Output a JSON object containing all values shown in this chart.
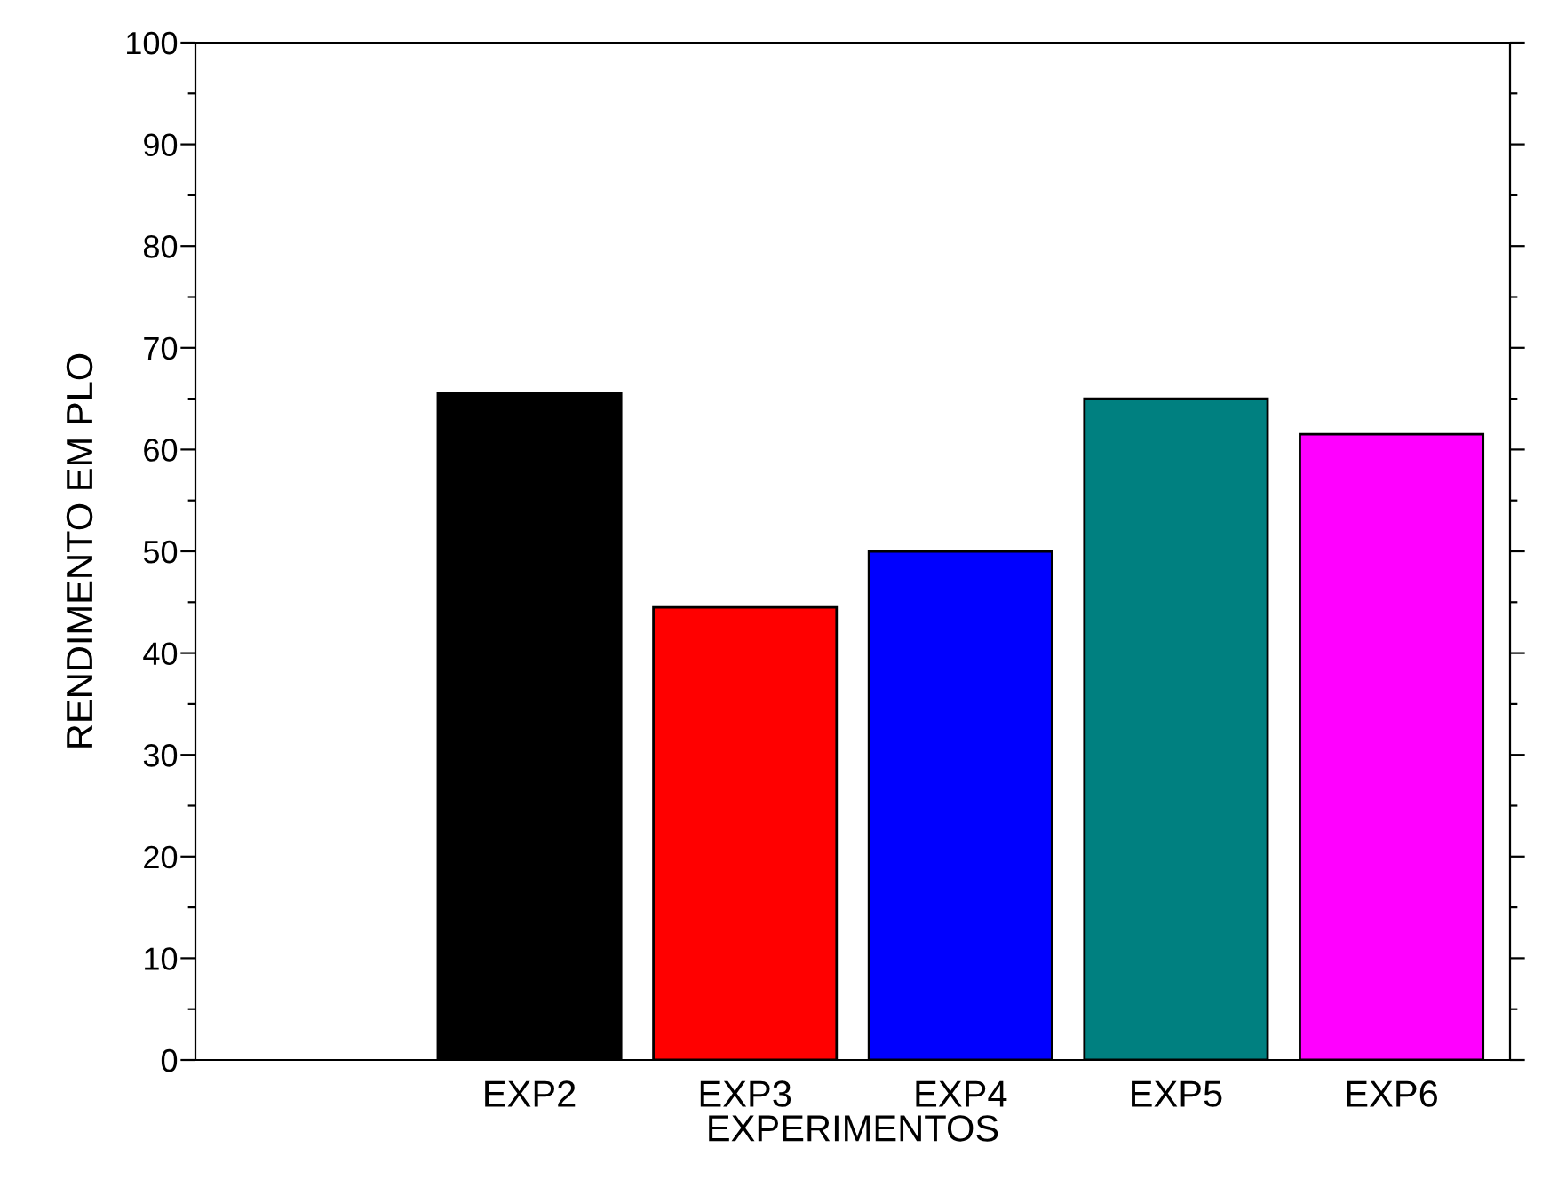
{
  "chart_data": {
    "type": "bar",
    "xlabel": "EXPERIMENTOS",
    "ylabel": "RENDIMENTO EM PLO",
    "categories": [
      "EXP2",
      "EXP3",
      "EXP4",
      "EXP5",
      "EXP6"
    ],
    "values": [
      65.5,
      44.5,
      50,
      65,
      61.5
    ],
    "colors": [
      "#000000",
      "#ff0000",
      "#0000ff",
      "#008080",
      "#ff00ff"
    ],
    "ylim": [
      0,
      100
    ],
    "yticks": [
      0,
      {
        "value": 5,
        "label": null
      },
      10,
      {
        "value": 15,
        "label": null
      },
      20,
      {
        "value": 25,
        "label": null
      },
      30,
      {
        "value": 35,
        "label": null
      },
      40,
      {
        "value": 45,
        "label": null
      },
      50,
      {
        "value": 55,
        "label": null
      },
      60,
      {
        "value": 65,
        "label": null
      },
      70,
      {
        "value": 75,
        "label": null
      },
      80,
      {
        "value": 85,
        "label": null
      },
      90,
      {
        "value": 95,
        "label": null
      },
      100
    ],
    "grid": false
  }
}
